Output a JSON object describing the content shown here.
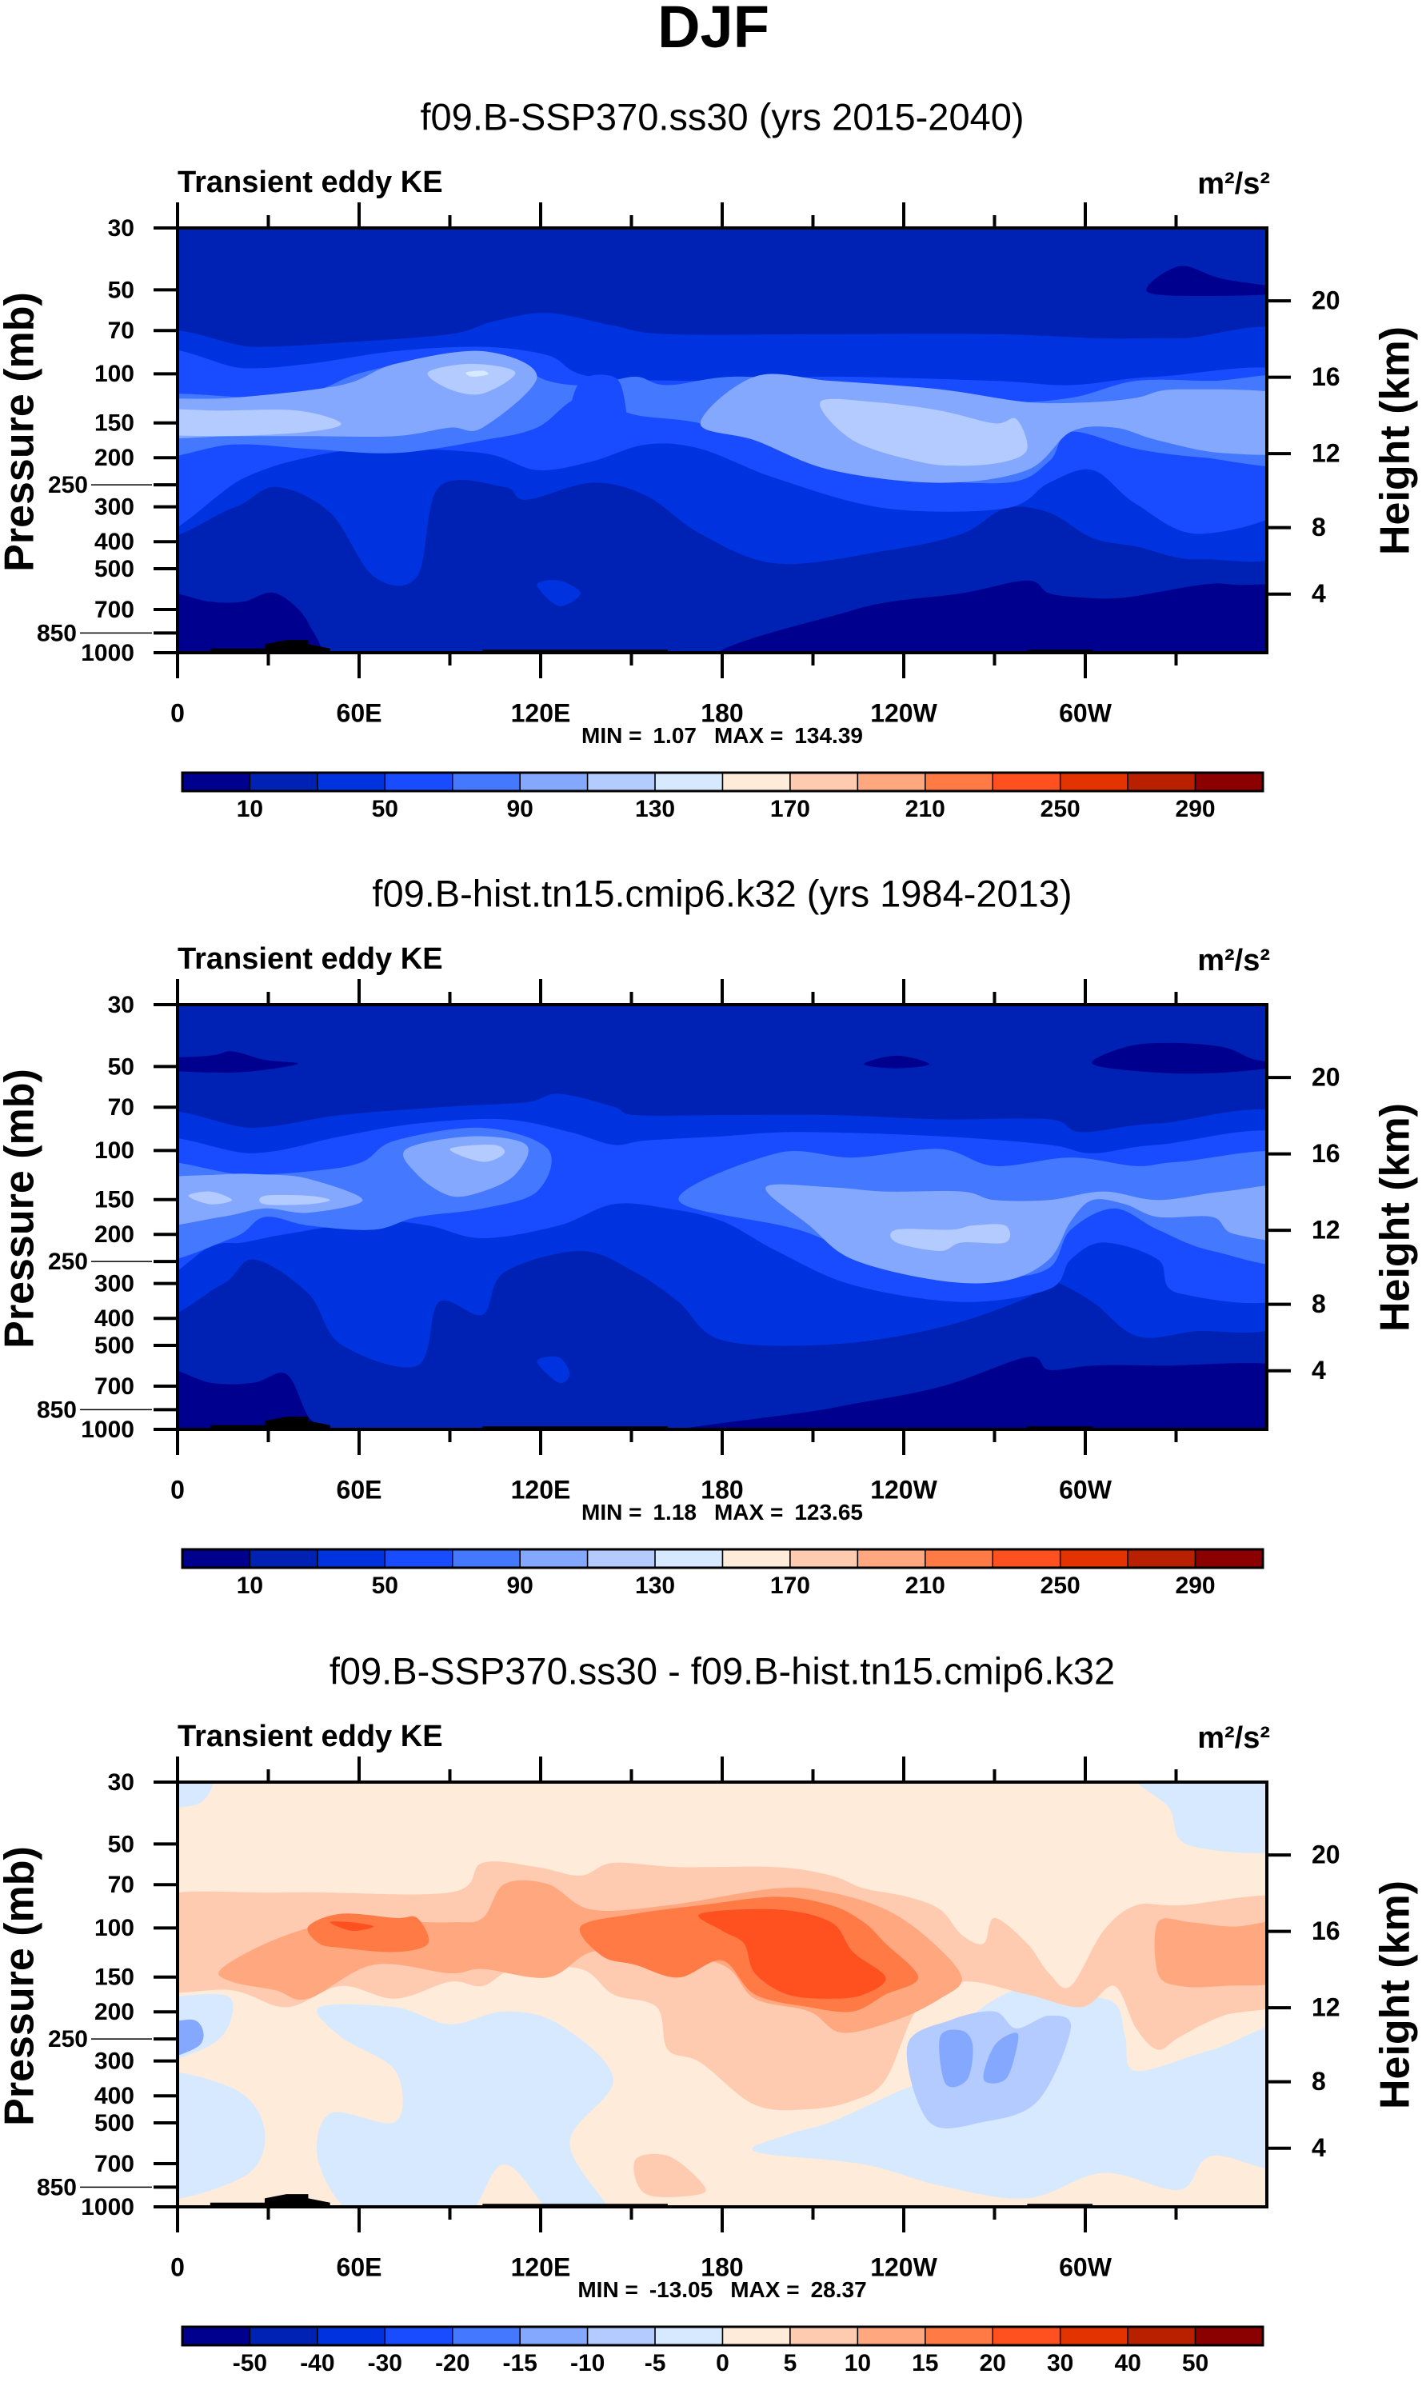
{
  "figure_title": "DJF",
  "chart_data": [
    {
      "type": "heatmap",
      "title": "f09.B-SSP370.ss30 (yrs 2015-2040)",
      "left_label": "Transient eddy KE",
      "units": "m²/s²",
      "ylabel": "Pressure (mb)",
      "y2label": "Height (km)",
      "xlim": [
        0,
        360
      ],
      "xticks": {
        "values": [
          0,
          60,
          120,
          180,
          240,
          300
        ],
        "labels": [
          "0",
          "60E",
          "120E",
          "180",
          "120W",
          "60W"
        ]
      },
      "ylim": [
        1000,
        30
      ],
      "yticks": [
        30,
        50,
        70,
        100,
        150,
        200,
        250,
        300,
        400,
        500,
        700,
        850,
        1000
      ],
      "y2ticks": [
        4,
        8,
        12,
        16,
        20
      ],
      "stats": {
        "min_label": "MIN =",
        "min": "1.07",
        "max_label": "MAX =",
        "max": "134.39"
      },
      "colorbar": {
        "levels": [
          10,
          30,
          50,
          70,
          90,
          110,
          130,
          150,
          170,
          190,
          210,
          230,
          250,
          270,
          290
        ],
        "labels": [
          "10",
          "50",
          "90",
          "130",
          "170",
          "210",
          "250",
          "290"
        ],
        "colors": [
          "#00008f",
          "#0022b4",
          "#0033e0",
          "#1a4cff",
          "#4478ff",
          "#85a8ff",
          "#b3cbff",
          "#d6e9ff",
          "#ffebd9",
          "#ffcbb0",
          "#ffa880",
          "#ff7a45",
          "#ff5020",
          "#e23300",
          "#b82000",
          "#8b0000"
        ]
      }
    },
    {
      "type": "heatmap",
      "title": "f09.B-hist.tn15.cmip6.k32 (yrs 1984-2013)",
      "left_label": "Transient eddy KE",
      "units": "m²/s²",
      "ylabel": "Pressure (mb)",
      "y2label": "Height (km)",
      "xlim": [
        0,
        360
      ],
      "xticks": {
        "values": [
          0,
          60,
          120,
          180,
          240,
          300
        ],
        "labels": [
          "0",
          "60E",
          "120E",
          "180",
          "120W",
          "60W"
        ]
      },
      "ylim": [
        1000,
        30
      ],
      "yticks": [
        30,
        50,
        70,
        100,
        150,
        200,
        250,
        300,
        400,
        500,
        700,
        850,
        1000
      ],
      "y2ticks": [
        4,
        8,
        12,
        16,
        20
      ],
      "stats": {
        "min_label": "MIN =",
        "min": "1.18",
        "max_label": "MAX =",
        "max": "123.65"
      },
      "colorbar": {
        "levels": [
          10,
          30,
          50,
          70,
          90,
          110,
          130,
          150,
          170,
          190,
          210,
          230,
          250,
          270,
          290
        ],
        "labels": [
          "10",
          "50",
          "90",
          "130",
          "170",
          "210",
          "250",
          "290"
        ],
        "colors": [
          "#00008f",
          "#0022b4",
          "#0033e0",
          "#1a4cff",
          "#4478ff",
          "#85a8ff",
          "#b3cbff",
          "#d6e9ff",
          "#ffebd9",
          "#ffcbb0",
          "#ffa880",
          "#ff7a45",
          "#ff5020",
          "#e23300",
          "#b82000",
          "#8b0000"
        ]
      }
    },
    {
      "type": "heatmap",
      "title": "f09.B-SSP370.ss30 - f09.B-hist.tn15.cmip6.k32",
      "left_label": "Transient eddy KE",
      "units": "m²/s²",
      "ylabel": "Pressure (mb)",
      "y2label": "Height (km)",
      "xlim": [
        0,
        360
      ],
      "xticks": {
        "values": [
          0,
          60,
          120,
          180,
          240,
          300
        ],
        "labels": [
          "0",
          "60E",
          "120E",
          "180",
          "120W",
          "60W"
        ]
      },
      "ylim": [
        1000,
        30
      ],
      "yticks": [
        30,
        50,
        70,
        100,
        150,
        200,
        250,
        300,
        400,
        500,
        700,
        850,
        1000
      ],
      "y2ticks": [
        4,
        8,
        12,
        16,
        20
      ],
      "stats": {
        "min_label": "MIN =",
        "min": "-13.05",
        "max_label": "MAX =",
        "max": "28.37"
      },
      "colorbar": {
        "levels": [
          -50,
          -40,
          -30,
          -20,
          -15,
          -10,
          -5,
          0,
          5,
          10,
          15,
          20,
          30,
          40,
          50
        ],
        "labels": [
          "-50",
          "-40",
          "-30",
          "-20",
          "-15",
          "-10",
          "-5",
          "0",
          "5",
          "10",
          "15",
          "20",
          "30",
          "40",
          "50"
        ],
        "colors": [
          "#00008f",
          "#0022b4",
          "#0033e0",
          "#1a4cff",
          "#4478ff",
          "#85a8ff",
          "#b3cbff",
          "#d6e9ff",
          "#ffebd9",
          "#ffcbb0",
          "#ffa880",
          "#ff7a45",
          "#ff5020",
          "#e23300",
          "#b82000",
          "#8b0000"
        ]
      }
    }
  ]
}
